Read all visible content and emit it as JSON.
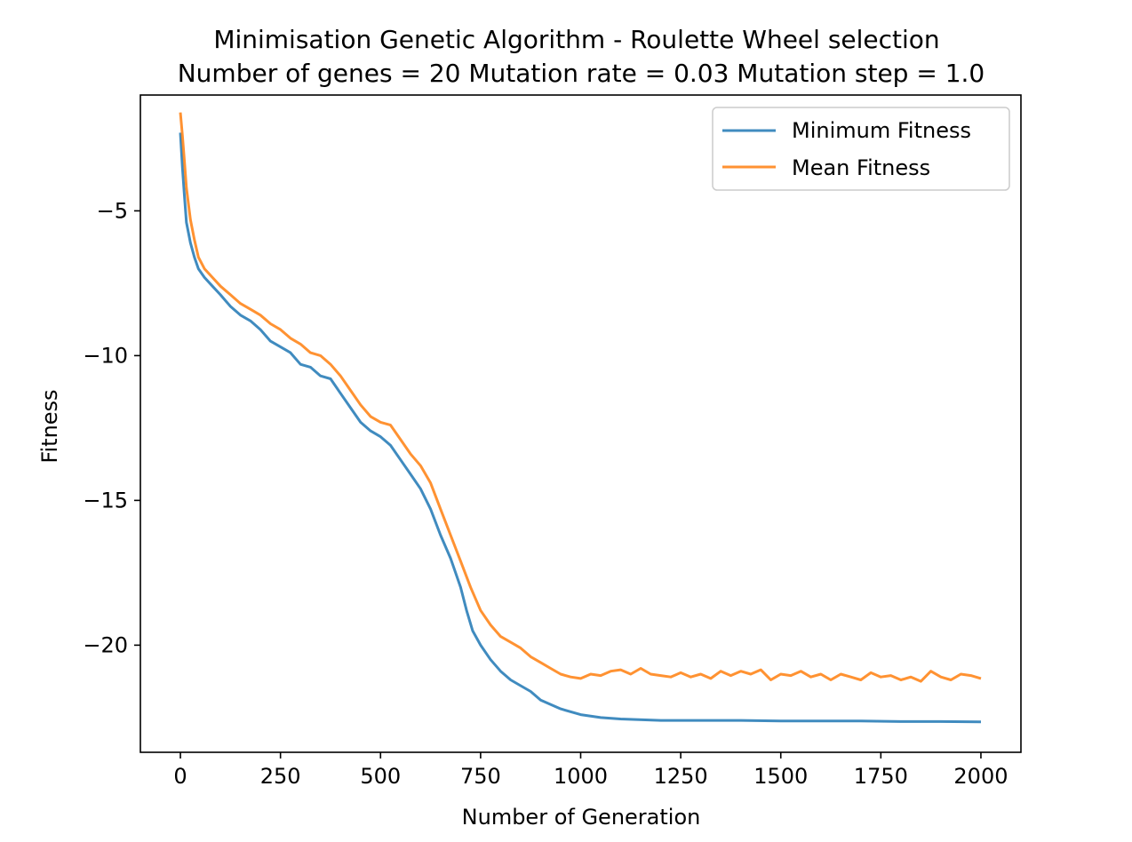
{
  "chart_data": {
    "type": "line",
    "title": "Minimisation Genetic Algorithm - Roulette Wheel selection",
    "subtitle": "Number of genes = 20 Mutation rate = 0.03 Mutation step = 1.0",
    "xlabel": "Number of Generation",
    "ylabel": "Fitness",
    "xlim": [
      -100,
      2100
    ],
    "ylim": [
      -23.7,
      -1.0
    ],
    "xticks": [
      0,
      250,
      500,
      750,
      1000,
      1250,
      1500,
      1750,
      2000
    ],
    "yticks": [
      -5,
      -10,
      -15,
      -20
    ],
    "xtick_labels": [
      "0",
      "250",
      "500",
      "750",
      "1000",
      "1250",
      "1500",
      "1750",
      "2000"
    ],
    "ytick_labels": [
      "−5",
      "−10",
      "−15",
      "−20"
    ],
    "grid": false,
    "legend_position": "top-right",
    "series": [
      {
        "name": "Minimum Fitness",
        "color": "#1f77b4",
        "points": [
          [
            0,
            -2.3
          ],
          [
            5,
            -3.5
          ],
          [
            10,
            -4.5
          ],
          [
            15,
            -5.4
          ],
          [
            25,
            -6.1
          ],
          [
            35,
            -6.6
          ],
          [
            45,
            -7.0
          ],
          [
            60,
            -7.3
          ],
          [
            80,
            -7.6
          ],
          [
            100,
            -7.9
          ],
          [
            125,
            -8.3
          ],
          [
            150,
            -8.6
          ],
          [
            175,
            -8.8
          ],
          [
            200,
            -9.1
          ],
          [
            225,
            -9.5
          ],
          [
            250,
            -9.7
          ],
          [
            275,
            -9.9
          ],
          [
            300,
            -10.3
          ],
          [
            325,
            -10.4
          ],
          [
            350,
            -10.7
          ],
          [
            375,
            -10.8
          ],
          [
            400,
            -11.3
          ],
          [
            425,
            -11.8
          ],
          [
            450,
            -12.3
          ],
          [
            475,
            -12.6
          ],
          [
            500,
            -12.8
          ],
          [
            525,
            -13.1
          ],
          [
            550,
            -13.6
          ],
          [
            575,
            -14.1
          ],
          [
            600,
            -14.6
          ],
          [
            625,
            -15.3
          ],
          [
            650,
            -16.2
          ],
          [
            675,
            -17.0
          ],
          [
            700,
            -18.0
          ],
          [
            715,
            -18.8
          ],
          [
            730,
            -19.5
          ],
          [
            750,
            -20.0
          ],
          [
            775,
            -20.5
          ],
          [
            800,
            -20.9
          ],
          [
            825,
            -21.2
          ],
          [
            850,
            -21.4
          ],
          [
            875,
            -21.6
          ],
          [
            900,
            -21.9
          ],
          [
            950,
            -22.2
          ],
          [
            1000,
            -22.4
          ],
          [
            1050,
            -22.5
          ],
          [
            1100,
            -22.55
          ],
          [
            1200,
            -22.6
          ],
          [
            1300,
            -22.6
          ],
          [
            1400,
            -22.6
          ],
          [
            1500,
            -22.62
          ],
          [
            1600,
            -22.62
          ],
          [
            1700,
            -22.62
          ],
          [
            1800,
            -22.64
          ],
          [
            1900,
            -22.64
          ],
          [
            2000,
            -22.65
          ]
        ]
      },
      {
        "name": "Mean Fitness",
        "color": "#ff7f0e",
        "points": [
          [
            0,
            -1.6
          ],
          [
            5,
            -2.4
          ],
          [
            10,
            -3.3
          ],
          [
            15,
            -4.2
          ],
          [
            25,
            -5.3
          ],
          [
            35,
            -6.0
          ],
          [
            45,
            -6.6
          ],
          [
            60,
            -7.0
          ],
          [
            80,
            -7.3
          ],
          [
            100,
            -7.6
          ],
          [
            125,
            -7.9
          ],
          [
            150,
            -8.2
          ],
          [
            175,
            -8.4
          ],
          [
            200,
            -8.6
          ],
          [
            225,
            -8.9
          ],
          [
            250,
            -9.1
          ],
          [
            275,
            -9.4
          ],
          [
            300,
            -9.6
          ],
          [
            325,
            -9.9
          ],
          [
            350,
            -10.0
          ],
          [
            375,
            -10.3
          ],
          [
            400,
            -10.7
          ],
          [
            425,
            -11.2
          ],
          [
            450,
            -11.7
          ],
          [
            475,
            -12.1
          ],
          [
            500,
            -12.3
          ],
          [
            525,
            -12.4
          ],
          [
            550,
            -12.9
          ],
          [
            575,
            -13.4
          ],
          [
            600,
            -13.8
          ],
          [
            625,
            -14.4
          ],
          [
            650,
            -15.3
          ],
          [
            675,
            -16.2
          ],
          [
            700,
            -17.1
          ],
          [
            725,
            -18.0
          ],
          [
            750,
            -18.8
          ],
          [
            775,
            -19.3
          ],
          [
            800,
            -19.7
          ],
          [
            825,
            -19.9
          ],
          [
            850,
            -20.1
          ],
          [
            875,
            -20.4
          ],
          [
            900,
            -20.6
          ],
          [
            925,
            -20.8
          ],
          [
            950,
            -21.0
          ],
          [
            975,
            -21.1
          ],
          [
            1000,
            -21.15
          ],
          [
            1025,
            -21.0
          ],
          [
            1050,
            -21.05
          ],
          [
            1075,
            -20.9
          ],
          [
            1100,
            -20.85
          ],
          [
            1125,
            -21.0
          ],
          [
            1150,
            -20.8
          ],
          [
            1175,
            -21.0
          ],
          [
            1200,
            -21.05
          ],
          [
            1225,
            -21.1
          ],
          [
            1250,
            -20.95
          ],
          [
            1275,
            -21.1
          ],
          [
            1300,
            -21.0
          ],
          [
            1325,
            -21.15
          ],
          [
            1350,
            -20.9
          ],
          [
            1375,
            -21.05
          ],
          [
            1400,
            -20.9
          ],
          [
            1425,
            -21.0
          ],
          [
            1450,
            -20.85
          ],
          [
            1475,
            -21.2
          ],
          [
            1500,
            -21.0
          ],
          [
            1525,
            -21.05
          ],
          [
            1550,
            -20.9
          ],
          [
            1575,
            -21.1
          ],
          [
            1600,
            -21.0
          ],
          [
            1625,
            -21.2
          ],
          [
            1650,
            -21.0
          ],
          [
            1675,
            -21.1
          ],
          [
            1700,
            -21.2
          ],
          [
            1725,
            -20.95
          ],
          [
            1750,
            -21.1
          ],
          [
            1775,
            -21.05
          ],
          [
            1800,
            -21.2
          ],
          [
            1825,
            -21.1
          ],
          [
            1850,
            -21.25
          ],
          [
            1875,
            -20.9
          ],
          [
            1900,
            -21.1
          ],
          [
            1925,
            -21.2
          ],
          [
            1950,
            -21.0
          ],
          [
            1975,
            -21.05
          ],
          [
            2000,
            -21.15
          ]
        ]
      }
    ]
  }
}
